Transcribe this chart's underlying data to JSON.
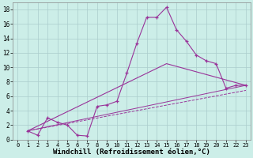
{
  "background_color": "#cceee8",
  "grid_color": "#aacccc",
  "line_color": "#993399",
  "xlabel": "Windchill (Refroidissement éolien,°C)",
  "xlabel_fontsize": 6.5,
  "xlim": [
    -0.5,
    23.5
  ],
  "ylim": [
    0,
    19
  ],
  "xticks": [
    0,
    1,
    2,
    3,
    4,
    5,
    6,
    7,
    8,
    9,
    10,
    11,
    12,
    13,
    14,
    15,
    16,
    17,
    18,
    19,
    20,
    21,
    22,
    23
  ],
  "yticks": [
    0,
    2,
    4,
    6,
    8,
    10,
    12,
    14,
    16,
    18
  ],
  "line1_x": [
    1,
    2,
    3,
    4,
    5,
    6,
    7,
    8,
    9,
    10,
    11,
    12,
    13,
    14,
    15,
    16,
    17,
    18,
    19,
    20,
    21,
    22,
    23
  ],
  "line1_y": [
    1.2,
    0.6,
    3.0,
    2.4,
    2.0,
    0.6,
    0.5,
    4.6,
    4.8,
    5.3,
    9.2,
    13.3,
    16.9,
    16.9,
    18.3,
    15.2,
    13.6,
    11.7,
    10.9,
    10.5,
    7.1,
    7.5,
    7.5
  ],
  "line2_x": [
    1,
    15,
    23
  ],
  "line2_y": [
    1.2,
    10.5,
    7.5
  ],
  "line3_x": [
    1,
    23
  ],
  "line3_y": [
    1.2,
    7.5
  ],
  "line4_x": [
    1,
    23
  ],
  "line4_y": [
    1.2,
    6.8
  ]
}
